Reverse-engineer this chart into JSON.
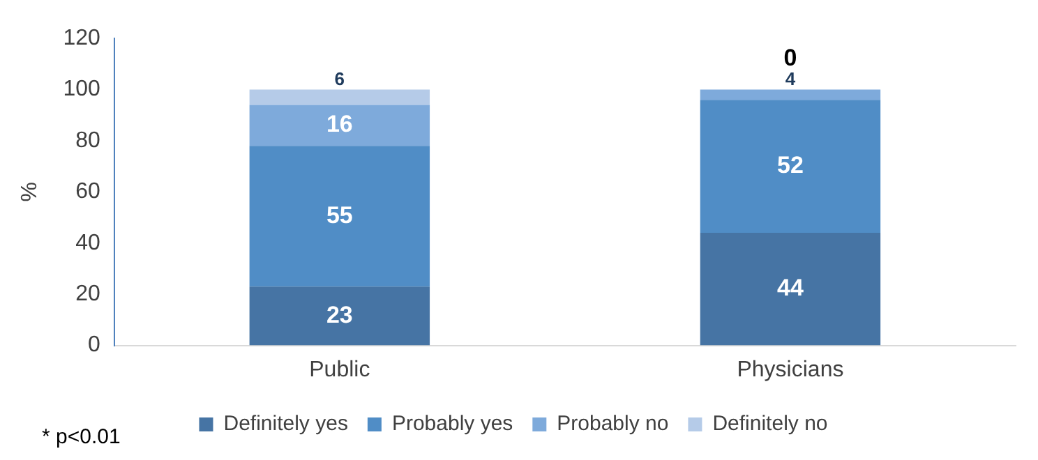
{
  "chart_data": {
    "type": "bar",
    "stacked": true,
    "ylabel": "%",
    "categories": [
      "Public",
      "Physicians"
    ],
    "series": [
      {
        "name": "Definitely yes",
        "color": "#4674a4",
        "values": [
          23,
          44
        ]
      },
      {
        "name": "Probably yes",
        "color": "#508dc6",
        "values": [
          55,
          52
        ]
      },
      {
        "name": "Probably no",
        "color": "#7eaadb",
        "values": [
          16,
          4
        ]
      },
      {
        "name": "Definitely no",
        "color": "#b5cbe8",
        "values": [
          6,
          0
        ]
      }
    ],
    "ylim": [
      0,
      120
    ],
    "yticks": [
      0,
      20,
      40,
      60,
      80,
      100,
      120
    ],
    "grid": false,
    "legend": "bottom",
    "data_labels": true,
    "annotations": [
      "* p<0.01"
    ]
  }
}
